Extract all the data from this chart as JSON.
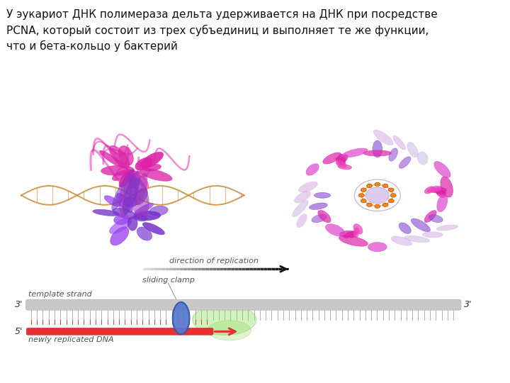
{
  "title_text": "У эукариот ДНК полимераза дельта удерживается на ДНК при посредстве\nPCNA, который состоит из трех субъединиц и выполняет те же функции,\nчто и бета-кольцо у бактерий",
  "title_fontsize": 11,
  "bg_color": "#ffffff",
  "direction_label": "direction of replication",
  "sliding_clamp_label": "sliding clamp",
  "template_strand_label": "template strand",
  "newly_replicated_label": "newly replicated DNA",
  "label_3prime_left": "3'",
  "label_3prime_right": "3'",
  "label_5prime": "5'",
  "dna_gray": "#c8c8c8",
  "dna_red": "#e83030",
  "clamp_blue": "#5577cc",
  "polymerase_green": "#90dd60",
  "tick_gray": "#aaaaaa",
  "tick_red": "#e83030",
  "magenta": "#dd22aa",
  "purple": "#7733cc",
  "light_purple": "#cc99dd",
  "gold": "#cc8833",
  "orange": "#ee8822"
}
